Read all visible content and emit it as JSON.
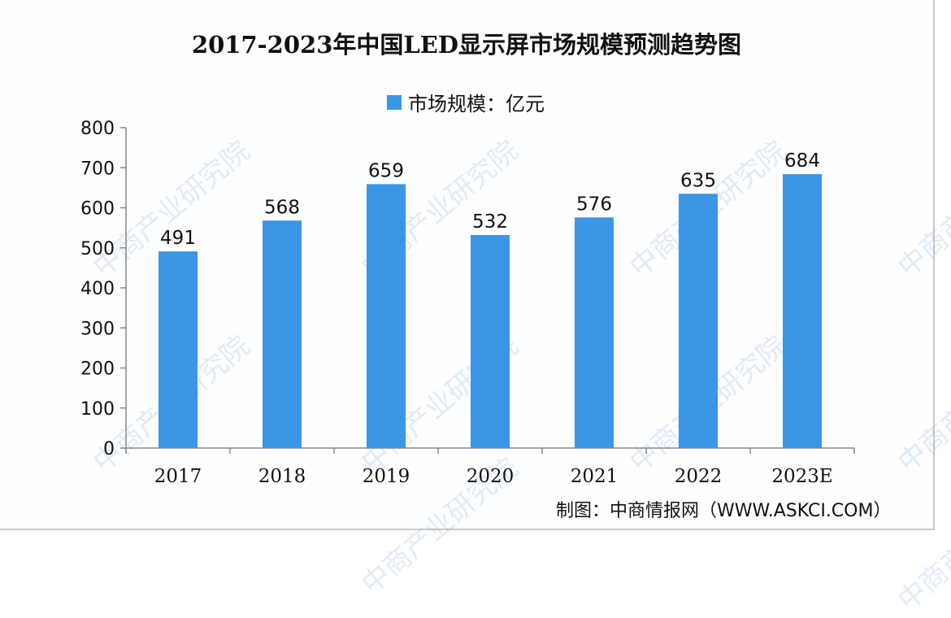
{
  "chart_data": {
    "type": "bar",
    "title": "2017-2023年中国LED显示屏市场规模预测趋势图",
    "legend": [
      "市场规模：亿元"
    ],
    "legend_placement": "top",
    "categories": [
      "2017",
      "2018",
      "2019",
      "2020",
      "2021",
      "2022",
      "2023E"
    ],
    "series": [
      {
        "name": "市场规模：亿元",
        "values": [
          491,
          568,
          659,
          532,
          576,
          635,
          684
        ]
      }
    ],
    "data_labels": [
      "491",
      "568",
      "659",
      "532",
      "576",
      "635",
      "684"
    ],
    "ylim": [
      0,
      800
    ],
    "yticks": [
      "0",
      "100",
      "200",
      "300",
      "400",
      "500",
      "600",
      "700",
      "800"
    ],
    "xlabel": "",
    "ylabel": "",
    "grid": false,
    "bar_color": "#3b96e6"
  },
  "source": "制图：中商情报网（WWW.ASKCI.COM）",
  "watermark": "中商产业研究院"
}
